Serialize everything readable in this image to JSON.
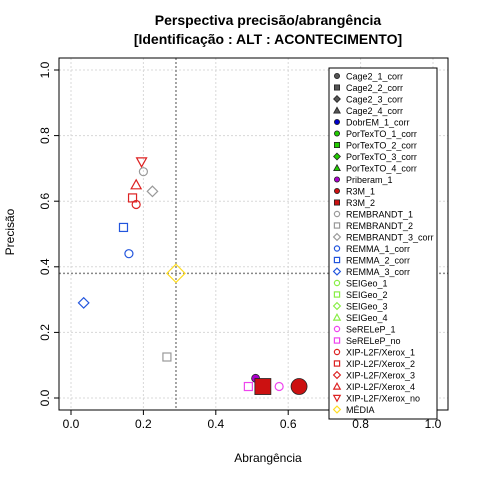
{
  "chart_data": {
    "type": "scatter",
    "title": "Perspectiva precisão/abrangência",
    "subtitle": "[Identificação : ALT : ACONTECIMENTO]",
    "xlabel": "Abrangência",
    "ylabel": "Precisão",
    "xlim": [
      0,
      1
    ],
    "ylim": [
      0,
      1
    ],
    "xticks": [
      "0.0",
      "0.2",
      "0.4",
      "0.6",
      "0.8",
      "1.0"
    ],
    "yticks": [
      "0.0",
      "0.2",
      "0.4",
      "0.6",
      "0.8",
      "1.0"
    ],
    "grid": true,
    "legend_position": "right",
    "reference_lines": {
      "x": 0.29,
      "y": 0.38
    },
    "series": [
      {
        "name": "Cage2_1_corr",
        "color": "#555555",
        "shape": "circle-filled",
        "points": []
      },
      {
        "name": "Cage2_2_corr",
        "color": "#555555",
        "shape": "square-filled",
        "points": []
      },
      {
        "name": "Cage2_3_corr",
        "color": "#555555",
        "shape": "diamond-filled",
        "points": []
      },
      {
        "name": "Cage2_4_corr",
        "color": "#555555",
        "shape": "triangle-filled",
        "points": []
      },
      {
        "name": "DobrEM_1_corr",
        "color": "#0000cc",
        "shape": "circle-filled",
        "points": []
      },
      {
        "name": "PorTexTO_1_corr",
        "color": "#22cc00",
        "shape": "circle-filled",
        "points": []
      },
      {
        "name": "PorTexTO_2_corr",
        "color": "#22cc00",
        "shape": "square-filled",
        "points": []
      },
      {
        "name": "PorTexTO_3_corr",
        "color": "#22cc00",
        "shape": "diamond-filled",
        "points": []
      },
      {
        "name": "PorTexTO_4_corr",
        "color": "#22cc00",
        "shape": "triangle-filled",
        "points": []
      },
      {
        "name": "Priberam_1",
        "color": "#aa00cc",
        "shape": "circle-filled",
        "points": [
          {
            "x": 0.51,
            "y": 0.06
          }
        ]
      },
      {
        "name": "R3M_1",
        "color": "#cc1111",
        "shape": "circle-filled",
        "points": [
          {
            "x": 0.63,
            "y": 0.035
          }
        ]
      },
      {
        "name": "R3M_2",
        "color": "#cc1111",
        "shape": "square-filled",
        "points": [
          {
            "x": 0.53,
            "y": 0.035
          }
        ]
      },
      {
        "name": "REMBRANDT_1",
        "color": "#999999",
        "shape": "circle-open",
        "points": [
          {
            "x": 0.2,
            "y": 0.69
          }
        ]
      },
      {
        "name": "REMBRANDT_2",
        "color": "#999999",
        "shape": "square-open",
        "points": [
          {
            "x": 0.265,
            "y": 0.125
          }
        ]
      },
      {
        "name": "REMBRANDT_3_corr",
        "color": "#999999",
        "shape": "diamond-open",
        "points": [
          {
            "x": 0.225,
            "y": 0.63
          }
        ]
      },
      {
        "name": "REMMA_1_corr",
        "color": "#2255dd",
        "shape": "circle-open",
        "points": [
          {
            "x": 0.16,
            "y": 0.44
          }
        ]
      },
      {
        "name": "REMMA_2_corr",
        "color": "#2255dd",
        "shape": "square-open",
        "points": [
          {
            "x": 0.145,
            "y": 0.52
          }
        ]
      },
      {
        "name": "REMMA_3_corr",
        "color": "#2255dd",
        "shape": "diamond-open",
        "points": [
          {
            "x": 0.035,
            "y": 0.29
          }
        ]
      },
      {
        "name": "SEIGeo_1",
        "color": "#88ee44",
        "shape": "circle-open",
        "points": []
      },
      {
        "name": "SEIGeo_2",
        "color": "#88ee44",
        "shape": "square-open",
        "points": []
      },
      {
        "name": "SEIGeo_3",
        "color": "#88ee44",
        "shape": "diamond-open",
        "points": []
      },
      {
        "name": "SEIGeo_4",
        "color": "#88ee44",
        "shape": "triangle-open",
        "points": []
      },
      {
        "name": "SeRELeP_1",
        "color": "#ee44ee",
        "shape": "circle-open",
        "points": [
          {
            "x": 0.575,
            "y": 0.035
          }
        ]
      },
      {
        "name": "SeRELeP_no",
        "color": "#ee44ee",
        "shape": "square-open",
        "points": [
          {
            "x": 0.49,
            "y": 0.035
          }
        ]
      },
      {
        "name": "XIP-L2F/Xerox_1",
        "color": "#dd2222",
        "shape": "circle-open",
        "points": [
          {
            "x": 0.18,
            "y": 0.59
          }
        ]
      },
      {
        "name": "XIP-L2F/Xerox_2",
        "color": "#dd2222",
        "shape": "square-open",
        "points": [
          {
            "x": 0.17,
            "y": 0.61
          }
        ]
      },
      {
        "name": "XIP-L2F/Xerox_3",
        "color": "#dd2222",
        "shape": "diamond-open",
        "points": []
      },
      {
        "name": "XIP-L2F/Xerox_4",
        "color": "#dd2222",
        "shape": "triangle-open",
        "points": [
          {
            "x": 0.18,
            "y": 0.65
          }
        ]
      },
      {
        "name": "XIP-L2F/Xerox_no",
        "color": "#dd2222",
        "shape": "triangle-down-open",
        "points": [
          {
            "x": 0.195,
            "y": 0.72
          }
        ]
      },
      {
        "name": "MÉDIA",
        "color": "#ffdd22",
        "shape": "diamond-open",
        "points": [
          {
            "x": 0.29,
            "y": 0.38
          }
        ]
      }
    ]
  }
}
